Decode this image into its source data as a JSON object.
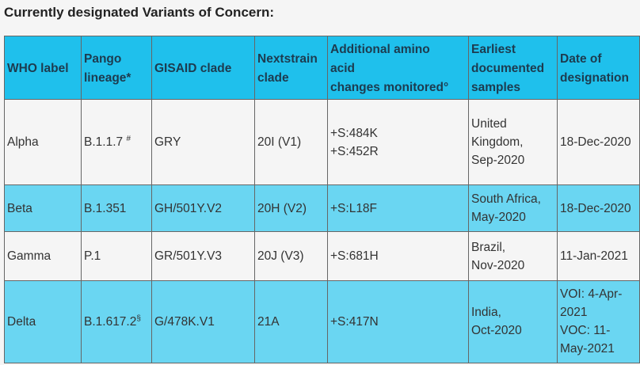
{
  "heading": "Currently designated Variants of Concern:",
  "columns": [
    {
      "lines": [
        "WHO label"
      ]
    },
    {
      "lines": [
        "Pango",
        "lineage*"
      ]
    },
    {
      "lines": [
        "GISAID clade"
      ]
    },
    {
      "lines": [
        "Nextstrain",
        "clade"
      ]
    },
    {
      "lines": [
        "Additional amino",
        "acid",
        "changes monitored°"
      ]
    },
    {
      "lines": [
        "Earliest",
        "documented",
        "samples"
      ]
    },
    {
      "lines": [
        "Date of",
        "designation"
      ]
    }
  ],
  "rows": [
    {
      "who": "Alpha",
      "pango": "B.1.1.7",
      "pango_mark": "#",
      "gisaid": "GRY",
      "nextstrain": "20I (V1)",
      "changes": [
        "+S:484K",
        "+S:452R"
      ],
      "samples": [
        "United",
        "Kingdom,",
        "Sep-2020"
      ],
      "designation": [
        "18-Dec-2020"
      ]
    },
    {
      "who": "Beta",
      "pango": "B.1.351",
      "pango_mark": "",
      "gisaid": "GH/501Y.V2",
      "nextstrain": "20H (V2)",
      "changes": [
        "+S:L18F"
      ],
      "samples": [
        "South Africa,",
        "May-2020"
      ],
      "designation": [
        "18-Dec-2020"
      ]
    },
    {
      "who": "Gamma",
      "pango": "P.1",
      "pango_mark": "",
      "gisaid": "GR/501Y.V3",
      "nextstrain": "20J (V3)",
      "changes": [
        "+S:681H"
      ],
      "samples": [
        "Brazil,",
        "Nov-2020"
      ],
      "designation": [
        "11-Jan-2021"
      ]
    },
    {
      "who": "Delta",
      "pango": "B.1.617.2",
      "pango_mark": "§",
      "gisaid": "G/478K.V1",
      "nextstrain": "21A",
      "changes": [
        "+S:417N"
      ],
      "samples": [
        "India,",
        "Oct-2020"
      ],
      "designation": [
        "VOI: 4-Apr-",
        "2021",
        "VOC: 11-",
        "May-2021"
      ]
    }
  ],
  "colors": {
    "header_bg": "#1fc0ec",
    "row_blue": "#6ad6f2",
    "row_light": "#f5f5f5",
    "header_text": "#1d3b4f"
  }
}
